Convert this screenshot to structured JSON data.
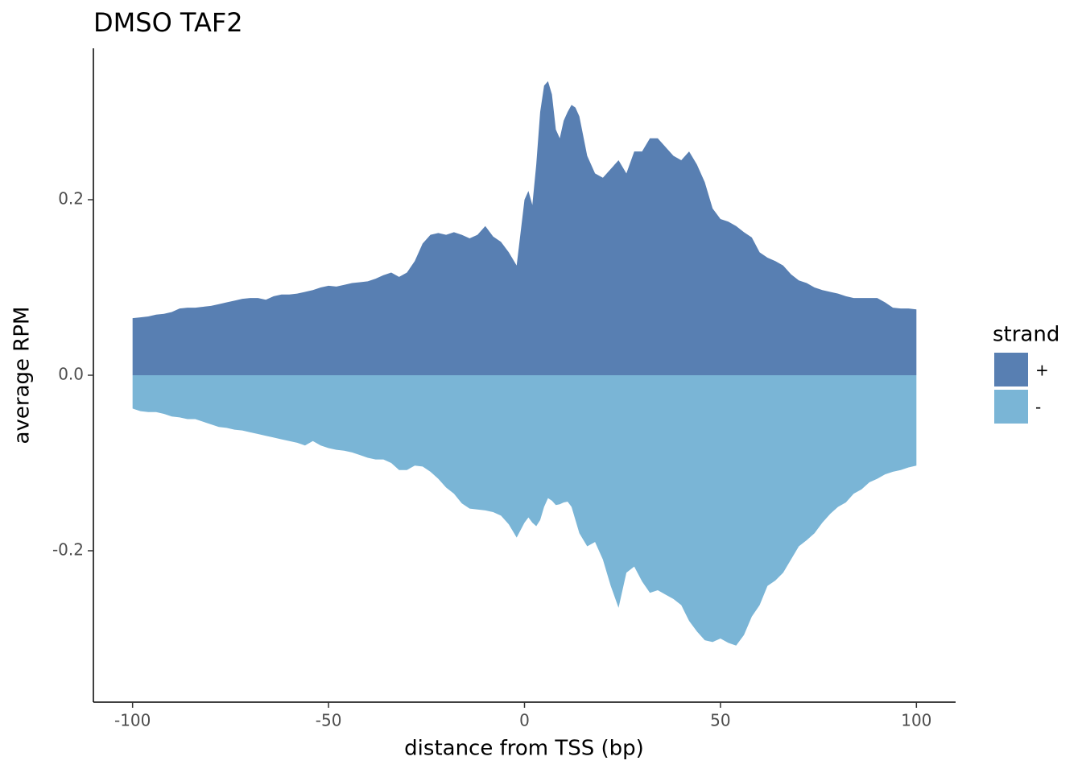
{
  "chart_data": {
    "type": "area",
    "title": "DMSO TAF2",
    "xlabel": "distance from TSS (bp)",
    "ylabel": "average RPM",
    "legend_title": "strand",
    "legend": "right",
    "x": [
      -100,
      -98,
      -96,
      -94,
      -92,
      -90,
      -88,
      -86,
      -84,
      -82,
      -80,
      -78,
      -76,
      -74,
      -72,
      -70,
      -68,
      -66,
      -64,
      -62,
      -60,
      -58,
      -56,
      -54,
      -52,
      -50,
      -48,
      -46,
      -44,
      -42,
      -40,
      -38,
      -36,
      -34,
      -32,
      -30,
      -28,
      -26,
      -24,
      -22,
      -20,
      -18,
      -16,
      -14,
      -12,
      -10,
      -8,
      -6,
      -4,
      -2,
      0,
      1,
      2,
      3,
      4,
      5,
      6,
      7,
      8,
      9,
      10,
      11,
      12,
      13,
      14,
      16,
      18,
      20,
      22,
      24,
      26,
      28,
      30,
      32,
      34,
      36,
      38,
      40,
      42,
      44,
      46,
      48,
      50,
      52,
      54,
      56,
      58,
      60,
      62,
      64,
      66,
      68,
      70,
      72,
      74,
      76,
      78,
      80,
      82,
      84,
      86,
      88,
      90,
      92,
      94,
      96,
      98,
      100
    ],
    "series": [
      {
        "name": "+",
        "color": "#587fb2",
        "values": [
          0.065,
          0.066,
          0.067,
          0.069,
          0.07,
          0.072,
          0.076,
          0.077,
          0.077,
          0.078,
          0.079,
          0.081,
          0.083,
          0.085,
          0.087,
          0.088,
          0.088,
          0.086,
          0.09,
          0.092,
          0.092,
          0.093,
          0.095,
          0.097,
          0.1,
          0.102,
          0.101,
          0.103,
          0.105,
          0.106,
          0.107,
          0.11,
          0.114,
          0.117,
          0.112,
          0.117,
          0.13,
          0.15,
          0.16,
          0.162,
          0.16,
          0.163,
          0.16,
          0.156,
          0.16,
          0.17,
          0.158,
          0.152,
          0.14,
          0.125,
          0.2,
          0.21,
          0.194,
          0.24,
          0.3,
          0.33,
          0.335,
          0.32,
          0.28,
          0.27,
          0.29,
          0.3,
          0.308,
          0.305,
          0.295,
          0.25,
          0.23,
          0.225,
          0.235,
          0.245,
          0.23,
          0.255,
          0.255,
          0.27,
          0.27,
          0.26,
          0.25,
          0.245,
          0.255,
          0.24,
          0.22,
          0.19,
          0.178,
          0.175,
          0.17,
          0.163,
          0.157,
          0.14,
          0.134,
          0.13,
          0.125,
          0.115,
          0.108,
          0.105,
          0.1,
          0.097,
          0.095,
          0.093,
          0.09,
          0.088,
          0.088,
          0.088,
          0.088,
          0.083,
          0.077,
          0.076,
          0.076,
          0.075
        ]
      },
      {
        "name": "-",
        "color": "#7ab5d6",
        "values": [
          -0.038,
          -0.041,
          -0.042,
          -0.042,
          -0.044,
          -0.047,
          -0.048,
          -0.05,
          -0.05,
          -0.053,
          -0.056,
          -0.059,
          -0.06,
          -0.062,
          -0.063,
          -0.065,
          -0.067,
          -0.069,
          -0.071,
          -0.073,
          -0.075,
          -0.077,
          -0.08,
          -0.075,
          -0.08,
          -0.083,
          -0.085,
          -0.086,
          -0.088,
          -0.091,
          -0.094,
          -0.096,
          -0.096,
          -0.1,
          -0.108,
          -0.108,
          -0.103,
          -0.104,
          -0.11,
          -0.118,
          -0.128,
          -0.135,
          -0.146,
          -0.152,
          -0.153,
          -0.154,
          -0.156,
          -0.16,
          -0.17,
          -0.185,
          -0.168,
          -0.162,
          -0.168,
          -0.172,
          -0.165,
          -0.15,
          -0.14,
          -0.143,
          -0.148,
          -0.147,
          -0.145,
          -0.144,
          -0.15,
          -0.165,
          -0.18,
          -0.195,
          -0.19,
          -0.21,
          -0.24,
          -0.265,
          -0.225,
          -0.218,
          -0.235,
          -0.248,
          -0.245,
          -0.25,
          -0.255,
          -0.262,
          -0.28,
          -0.292,
          -0.302,
          -0.304,
          -0.3,
          -0.305,
          -0.308,
          -0.296,
          -0.275,
          -0.262,
          -0.24,
          -0.234,
          -0.225,
          -0.21,
          -0.195,
          -0.188,
          -0.18,
          -0.168,
          -0.158,
          -0.15,
          -0.145,
          -0.135,
          -0.13,
          -0.122,
          -0.118,
          -0.113,
          -0.11,
          -0.108,
          -0.105,
          -0.103
        ]
      }
    ],
    "xlim": [
      -110,
      110
    ],
    "xticks": [
      -100,
      -50,
      0,
      50,
      100
    ],
    "ylim": [
      -0.3725,
      0.3725
    ],
    "yticks": [
      -0.2,
      {
        "value": 0,
        "label": "0.0"
      },
      0.2
    ]
  }
}
